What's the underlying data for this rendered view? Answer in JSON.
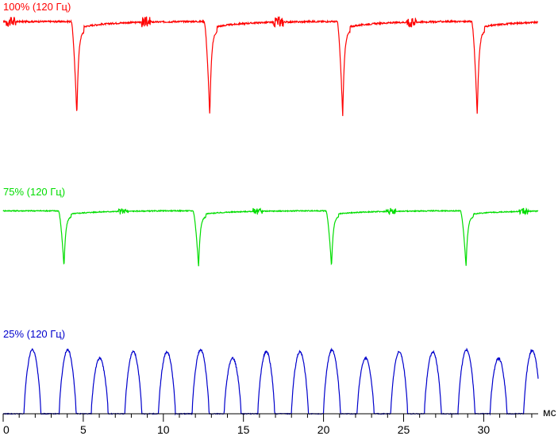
{
  "chart_data": {
    "type": "line",
    "title": "",
    "xlabel": "мс",
    "ylabel": "",
    "xlim": [
      0,
      33.4
    ],
    "x_ticks": [
      0,
      5,
      10,
      15,
      20,
      25,
      30
    ],
    "x_tick_labels": [
      "0",
      "5",
      "10",
      "15",
      "20",
      "25",
      "30"
    ],
    "x_minor_step": 1,
    "grid": false,
    "legend": "none",
    "series": [
      {
        "name": "100% (120 Гц)",
        "color": "#ff0000",
        "dips_ms": [
          4.6,
          12.9,
          21.2,
          29.6
        ],
        "glitches_ms": [
          0.5,
          8.9,
          17.2,
          25.5
        ],
        "ylim": [
          0,
          1
        ],
        "baseline": 0.96,
        "dip_min": 0.02
      },
      {
        "name": "75% (120 Гц)",
        "color": "#00dd00",
        "dips_ms": [
          3.8,
          12.2,
          20.5,
          28.9
        ],
        "glitches_ms": [
          7.5,
          15.9,
          24.2,
          32.5
        ],
        "ylim": [
          0,
          1
        ],
        "baseline": 0.93,
        "dip_min": 0.02
      },
      {
        "name": "25% (120 Гц)",
        "color": "#0000cc",
        "pulse_starts_ms": [
          1.3,
          3.5,
          5.5,
          7.6,
          9.7,
          11.8,
          13.8,
          15.9,
          18.0,
          20.0,
          22.1,
          24.2,
          26.3,
          28.4,
          30.4,
          32.5
        ],
        "pulse_peaks": [
          0.97,
          0.97,
          0.84,
          0.94,
          0.94,
          0.97,
          0.84,
          0.94,
          0.94,
          0.97,
          0.84,
          0.94,
          0.94,
          0.97,
          0.84,
          0.96
        ],
        "ylim": [
          0,
          1
        ],
        "baseline": 0.0
      }
    ]
  }
}
